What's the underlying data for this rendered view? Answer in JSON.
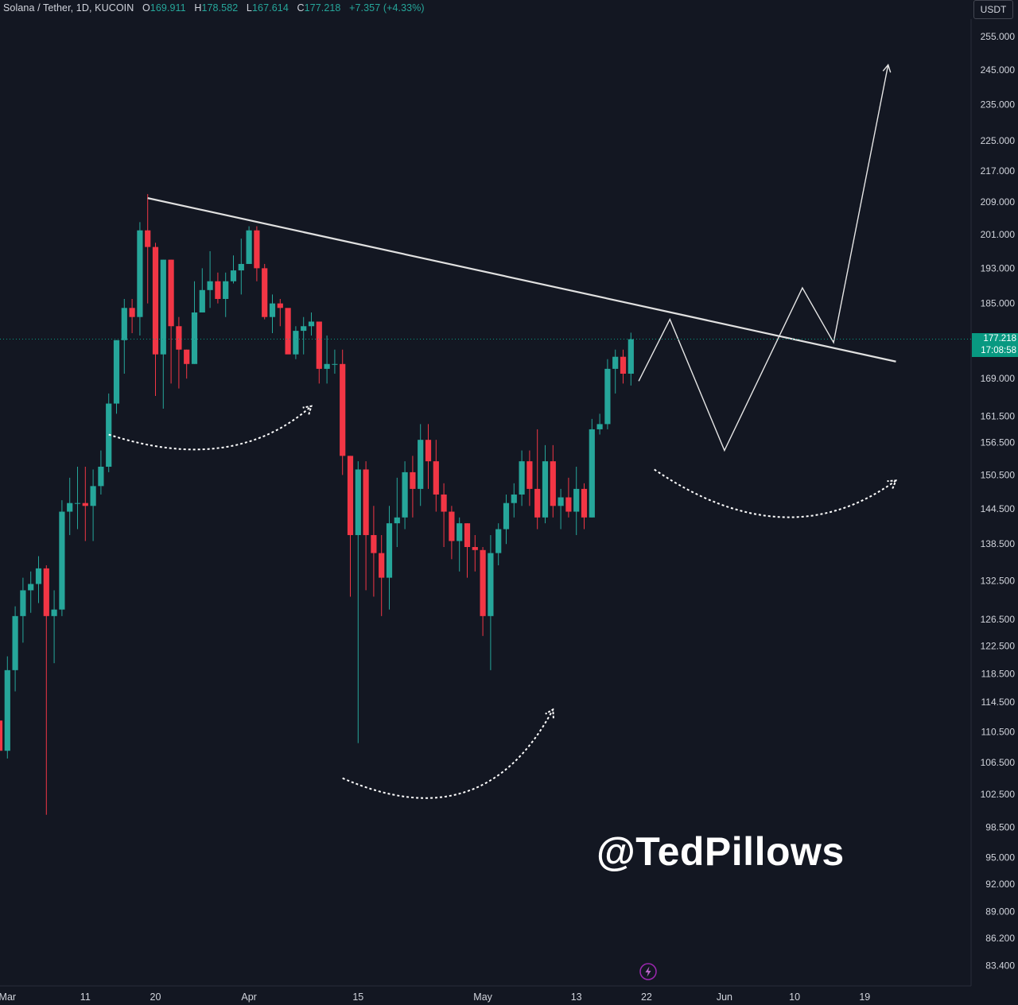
{
  "header": {
    "symbol": "Solana / Tether, 1D, KUCOIN",
    "open_label": "O",
    "open": "169.911",
    "high_label": "H",
    "high": "178.582",
    "low_label": "L",
    "low": "167.614",
    "close_label": "C",
    "close": "177.218",
    "change": "+7.357 (+4.33%)"
  },
  "currency": "USDT",
  "current_price": "177.218",
  "countdown": "17:08:58",
  "watermark": "@TedPillows",
  "bolt_icon": "lightning-icon",
  "colors": {
    "up": "#26a69a",
    "down": "#f23645",
    "background": "#131722",
    "tag": "#089981"
  },
  "chart_data": {
    "type": "candlestick",
    "scale": "log",
    "ylim": [
      82.8,
      257.0
    ],
    "y_ticks": [
      "255.000",
      "245.000",
      "235.000",
      "225.000",
      "217.000",
      "209.000",
      "201.000",
      "193.000",
      "185.000",
      "169.000",
      "161.500",
      "156.500",
      "150.500",
      "144.500",
      "138.500",
      "132.500",
      "126.500",
      "122.500",
      "118.500",
      "114.500",
      "110.500",
      "106.500",
      "102.500",
      "98.500",
      "95.000",
      "92.000",
      "89.000",
      "86.200",
      "83.400"
    ],
    "x_ticks": [
      {
        "label": "Mar",
        "date": "2024-03-01"
      },
      {
        "label": "11",
        "date": "2024-03-11"
      },
      {
        "label": "20",
        "date": "2024-03-20"
      },
      {
        "label": "Apr",
        "date": "2024-04-01"
      },
      {
        "label": "15",
        "date": "2024-04-15"
      },
      {
        "label": "May",
        "date": "2024-05-01"
      },
      {
        "label": "13",
        "date": "2024-05-13"
      },
      {
        "label": "22",
        "date": "2024-05-22"
      },
      {
        "label": "Jun",
        "date": "2024-06-01"
      },
      {
        "label": "10",
        "date": "2024-06-10"
      },
      {
        "label": "19",
        "date": "2024-06-19"
      }
    ],
    "first_date": "2024-02-29",
    "candles": [
      [
        112.0,
        108.0,
        117.5,
        104.0
      ],
      [
        108.0,
        119.0,
        121.0,
        107.0
      ],
      [
        119.0,
        127.0,
        128.5,
        116.0
      ],
      [
        127.0,
        131.0,
        133.0,
        123.0
      ],
      [
        131.0,
        132.0,
        134.0,
        127.5
      ],
      [
        132.0,
        134.5,
        136.5,
        129.0
      ],
      [
        134.5,
        127.0,
        135.0,
        100.0
      ],
      [
        127.0,
        128.0,
        131.0,
        120.0
      ],
      [
        128.0,
        144.0,
        146.0,
        127.0
      ],
      [
        144.0,
        145.5,
        150.0,
        140.0
      ],
      [
        145.5,
        145.5,
        152.0,
        141.0
      ],
      [
        145.5,
        145.0,
        152.0,
        139.0
      ],
      [
        145.0,
        148.5,
        151.5,
        139.0
      ],
      [
        148.5,
        152.0,
        155.0,
        147.0
      ],
      [
        152.0,
        164.0,
        166.0,
        151.0
      ],
      [
        164.0,
        177.0,
        177.0,
        162.0
      ],
      [
        177.0,
        184.0,
        186.0,
        170.0
      ],
      [
        184.0,
        182.0,
        186.0,
        178.5
      ],
      [
        182.0,
        202.0,
        204.0,
        178.0
      ],
      [
        202.0,
        198.0,
        211.0,
        185.0
      ],
      [
        198.0,
        174.0,
        199.0,
        165.5
      ],
      [
        174.0,
        195.0,
        195.0,
        163.0
      ],
      [
        195.0,
        180.0,
        195.0,
        168.0
      ],
      [
        180.0,
        175.0,
        182.0,
        167.0
      ],
      [
        175.0,
        172.0,
        175.0,
        169.0
      ],
      [
        172.0,
        183.0,
        190.0,
        172.0
      ],
      [
        183.0,
        188.0,
        193.0,
        183.0
      ],
      [
        188.0,
        190.0,
        197.0,
        184.0
      ],
      [
        190.0,
        186.0,
        192.0,
        185.0
      ],
      [
        186.0,
        190.0,
        192.0,
        182.0
      ],
      [
        190.0,
        192.5,
        196.0,
        189.5
      ],
      [
        192.5,
        194.0,
        200.0,
        187.0
      ],
      [
        194.0,
        202.0,
        203.0,
        194.0
      ],
      [
        202.0,
        193.0,
        203.0,
        190.0
      ],
      [
        193.0,
        182.0,
        194.0,
        181.5
      ],
      [
        182.0,
        185.0,
        187.0,
        178.5
      ],
      [
        185.0,
        184.0,
        186.0,
        180.0
      ],
      [
        184.0,
        174.0,
        183.0,
        175.5
      ],
      [
        174.0,
        179.0,
        180.0,
        173.0
      ],
      [
        179.0,
        180.0,
        182.0,
        174.0
      ],
      [
        180.0,
        181.0,
        183.0,
        178.0
      ],
      [
        181.0,
        171.0,
        181.0,
        168.0
      ],
      [
        171.0,
        172.0,
        178.0,
        168.0
      ],
      [
        172.0,
        172.0,
        175.0,
        170.0
      ],
      [
        172.0,
        154.0,
        175.0,
        150.5
      ],
      [
        154.0,
        140.0,
        154.0,
        130.0
      ],
      [
        140.0,
        151.5,
        153.0,
        109.0
      ],
      [
        151.5,
        140.0,
        153.0,
        131.0
      ],
      [
        140.0,
        137.0,
        145.0,
        130.0
      ],
      [
        137.0,
        133.0,
        140.0,
        127.0
      ],
      [
        133.0,
        142.0,
        145.0,
        128.0
      ],
      [
        142.0,
        143.0,
        150.0,
        138.0
      ],
      [
        143.0,
        151.0,
        153.0,
        141.0
      ],
      [
        151.0,
        148.0,
        154.0,
        143.0
      ],
      [
        148.0,
        157.0,
        160.0,
        145.0
      ],
      [
        157.0,
        153.0,
        160.0,
        148.0
      ],
      [
        153.0,
        147.0,
        157.0,
        144.0
      ],
      [
        147.0,
        144.0,
        149.0,
        138.0
      ],
      [
        144.0,
        139.0,
        145.0,
        136.0
      ],
      [
        139.0,
        142.0,
        143.0,
        134.0
      ],
      [
        142.0,
        138.0,
        142.0,
        133.0
      ],
      [
        138.0,
        137.5,
        140.0,
        134.0
      ],
      [
        137.5,
        127.0,
        138.0,
        124.0
      ],
      [
        127.0,
        137.0,
        140.0,
        119.0
      ],
      [
        137.0,
        141.0,
        142.0,
        135.0
      ],
      [
        141.0,
        145.5,
        147.0,
        138.5
      ],
      [
        145.5,
        147.0,
        149.0,
        143.0
      ],
      [
        147.0,
        153.0,
        155.0,
        145.0
      ],
      [
        153.0,
        148.0,
        155.0,
        145.0
      ],
      [
        148.0,
        143.0,
        159.0,
        141.0
      ],
      [
        143.0,
        153.0,
        156.0,
        142.0
      ],
      [
        153.0,
        145.0,
        156.0,
        143.0
      ],
      [
        145.0,
        146.5,
        148.0,
        141.0
      ],
      [
        146.5,
        144.0,
        150.0,
        143.0
      ],
      [
        144.0,
        148.0,
        152.0,
        140.0
      ],
      [
        148.0,
        143.0,
        149.0,
        141.0
      ],
      [
        143.0,
        159.0,
        161.0,
        143.0
      ],
      [
        159.0,
        160.0,
        162.0,
        158.0
      ],
      [
        160.0,
        171.0,
        173.0,
        159.0
      ],
      [
        171.0,
        173.5,
        175.0,
        166.0
      ],
      [
        173.5,
        170.0,
        175.0,
        168.0
      ],
      [
        170.0,
        177.2,
        178.6,
        167.6
      ]
    ],
    "annotations": {
      "trendline": [
        [
          "2024-03-19",
          210.0
        ],
        [
          "2024-06-23",
          172.5
        ]
      ],
      "projection_path": [
        [
          "2024-05-21",
          168.5
        ],
        [
          "2024-05-25",
          181.5
        ],
        [
          "2024-06-01",
          155.0
        ],
        [
          "2024-06-11",
          188.5
        ],
        [
          "2024-06-15",
          176.5
        ],
        [
          "2024-06-22",
          246.5
        ]
      ],
      "arcs": [
        {
          "from": [
            "2024-03-14",
            158.0
          ],
          "control": [
            "2024-03-30",
            150.5
          ],
          "to": [
            "2024-04-09",
            163.5
          ]
        },
        {
          "from": [
            "2024-04-13",
            104.5
          ],
          "control": [
            "2024-05-01",
            97.0
          ],
          "to": [
            "2024-05-10",
            113.5
          ]
        },
        {
          "from": [
            "2024-05-23",
            151.5
          ],
          "control": [
            "2024-06-09",
            136.0
          ],
          "to": [
            "2024-06-23",
            149.5
          ]
        }
      ]
    }
  }
}
